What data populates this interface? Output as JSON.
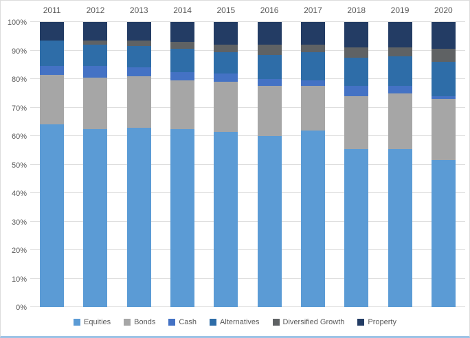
{
  "chart_data": {
    "type": "bar",
    "subtype": "stacked-100-percent-column",
    "title": "",
    "xlabel": "",
    "ylabel": "",
    "x_axis_position": "top",
    "legend_position": "bottom",
    "grid": true,
    "ylim": [
      0,
      100
    ],
    "y_ticks": [
      "0%",
      "10%",
      "20%",
      "30%",
      "40%",
      "50%",
      "60%",
      "70%",
      "80%",
      "90%",
      "100%"
    ],
    "categories": [
      "2011",
      "2012",
      "2013",
      "2014",
      "2015",
      "2016",
      "2017",
      "2018",
      "2019",
      "2020"
    ],
    "series": [
      {
        "name": "Equities",
        "color": "#5B9BD5",
        "values": [
          64,
          62.5,
          63,
          62.5,
          61.5,
          60,
          62,
          55.5,
          55.5,
          51.5
        ]
      },
      {
        "name": "Bonds",
        "color": "#A6A6A6",
        "values": [
          17.5,
          18,
          18,
          17,
          17.5,
          17.5,
          15.5,
          18.5,
          19.5,
          21.5
        ]
      },
      {
        "name": "Cash",
        "color": "#4472C4",
        "values": [
          3,
          4,
          3,
          3,
          3,
          2.5,
          2,
          3.5,
          2.5,
          1
        ]
      },
      {
        "name": "Alternatives",
        "color": "#2E6DA8",
        "values": [
          9,
          7.5,
          7.5,
          8,
          7.5,
          8.5,
          10,
          10,
          10.5,
          12
        ]
      },
      {
        "name": "Diversified Growth",
        "color": "#5F6264",
        "values": [
          0,
          1.5,
          2,
          2.5,
          2.5,
          3.5,
          2.5,
          3.5,
          3,
          4.5
        ]
      },
      {
        "name": "Property",
        "color": "#233C64",
        "values": [
          6.5,
          6.5,
          6.5,
          7,
          8,
          8,
          8,
          9,
          9,
          9.5
        ]
      }
    ],
    "colors": {
      "background": "#FFFFFF",
      "gridline": "#DEDEDE",
      "axis_text": "#595959",
      "frame_border": "#DCDCDC",
      "bottom_strip": "#9DC3E6"
    }
  }
}
